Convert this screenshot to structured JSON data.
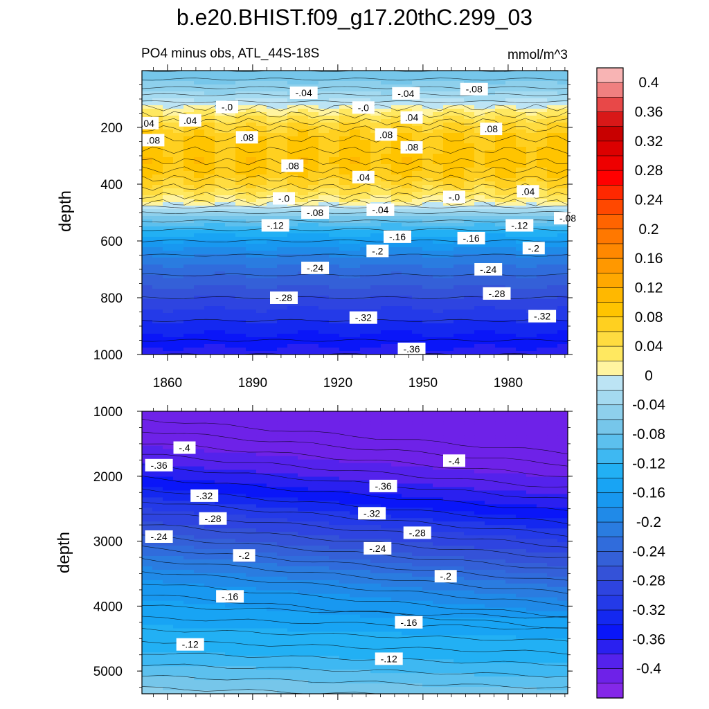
{
  "chart_data": {
    "type": "heatmap",
    "title": "b.e20.BHIST.f09_g17.20thC.299_03",
    "subtitle": "PO4 minus obs, ATL_44S-18S",
    "units": "mmol/m^3",
    "ylabel": "depth",
    "x_ticks": [
      "1860",
      "1890",
      "1920",
      "1950",
      "1980"
    ],
    "x_tick_values": [
      1860,
      1890,
      1920,
      1950,
      1980
    ],
    "xlim": [
      1851,
      2001
    ],
    "colorbar": {
      "labels": [
        "0.4",
        "0.36",
        "0.32",
        "0.28",
        "0.24",
        "0.2",
        "0.16",
        "0.12",
        "0.08",
        "0.04",
        "0",
        "-0.04",
        "-0.08",
        "-0.12",
        "-0.16",
        "-0.2",
        "-0.24",
        "-0.28",
        "-0.32",
        "-0.36",
        "-0.4"
      ],
      "levels_top_to_bottom": [
        0.42,
        0.4,
        0.38,
        0.36,
        0.34,
        0.32,
        0.3,
        0.28,
        0.26,
        0.24,
        0.22,
        0.2,
        0.18,
        0.16,
        0.14,
        0.12,
        0.1,
        0.08,
        0.06,
        0.04,
        0.02,
        0.0,
        -0.02,
        -0.04,
        -0.06,
        -0.08,
        -0.1,
        -0.12,
        -0.14,
        -0.16,
        -0.18,
        -0.2,
        -0.22,
        -0.24,
        -0.26,
        -0.28,
        -0.3,
        -0.32,
        -0.34,
        -0.36,
        -0.38,
        -0.4,
        -0.42
      ],
      "colors": [
        "#f8b4b4",
        "#f08080",
        "#e84848",
        "#d81818",
        "#c80000",
        "#dc0000",
        "#ee0000",
        "#ff0000",
        "#ff2800",
        "#ff4800",
        "#ff6400",
        "#ff7800",
        "#ff8800",
        "#ff9800",
        "#ffa800",
        "#ffb800",
        "#ffc400",
        "#ffd020",
        "#ffdc40",
        "#ffe860",
        "#fff4a0",
        "#bce4f4",
        "#a4daf0",
        "#8ed0ec",
        "#76c6ea",
        "#5cc0ee",
        "#3eb8f2",
        "#22b0f4",
        "#18a4f4",
        "#1898f0",
        "#208ae8",
        "#2a7ce0",
        "#306cdc",
        "#3460d8",
        "#3452d8",
        "#2e44e0",
        "#243ae8",
        "#1428f0",
        "#0a16f8",
        "#2a20f0",
        "#5422ec",
        "#6e22e8",
        "#8428e8"
      ]
    },
    "panels": [
      {
        "name": "upper",
        "ylim": [
          0,
          1000
        ],
        "y_ticks": [
          "200",
          "400",
          "600",
          "800",
          "1000"
        ],
        "y_tick_values": [
          200,
          400,
          600,
          800,
          1000
        ],
        "depth_profile": [
          [
            0,
            -0.07
          ],
          [
            30,
            -0.065
          ],
          [
            60,
            -0.05
          ],
          [
            85,
            -0.035
          ],
          [
            110,
            -0.015
          ],
          [
            130,
            0.005
          ],
          [
            155,
            0.03
          ],
          [
            180,
            0.05
          ],
          [
            205,
            0.065
          ],
          [
            240,
            0.08
          ],
          [
            280,
            0.085
          ],
          [
            320,
            0.09
          ],
          [
            350,
            0.08
          ],
          [
            380,
            0.07
          ],
          [
            410,
            0.05
          ],
          [
            440,
            0.03
          ],
          [
            465,
            0.01
          ],
          [
            480,
            -0.01
          ],
          [
            500,
            -0.04
          ],
          [
            530,
            -0.08
          ],
          [
            560,
            -0.12
          ],
          [
            600,
            -0.16
          ],
          [
            650,
            -0.2
          ],
          [
            720,
            -0.24
          ],
          [
            800,
            -0.28
          ],
          [
            880,
            -0.32
          ],
          [
            950,
            -0.35
          ],
          [
            1000,
            -0.37
          ]
        ],
        "contour_labels": [
          {
            "text": ".04",
            "x": 1853,
            "depth": 185
          },
          {
            "text": ".08",
            "x": 1855,
            "depth": 245
          },
          {
            "text": "-.0",
            "x": 1881,
            "depth": 128
          },
          {
            "text": ".04",
            "x": 1868,
            "depth": 175
          },
          {
            "text": ".08",
            "x": 1888,
            "depth": 235
          },
          {
            "text": "-.04",
            "x": 1908,
            "depth": 78
          },
          {
            "text": ".08",
            "x": 1904,
            "depth": 335
          },
          {
            "text": "-.0",
            "x": 1929,
            "depth": 130
          },
          {
            "text": ".04",
            "x": 1929,
            "depth": 375
          },
          {
            "text": ".08",
            "x": 1937,
            "depth": 225
          },
          {
            "text": "-.04",
            "x": 1944,
            "depth": 80
          },
          {
            "text": ".04",
            "x": 1946,
            "depth": 165
          },
          {
            "text": ".08",
            "x": 1946,
            "depth": 270
          },
          {
            "text": "-.08",
            "x": 1968,
            "depth": 65
          },
          {
            "text": ".08",
            "x": 1974,
            "depth": 205
          },
          {
            "text": "-.0",
            "x": 1961,
            "depth": 445
          },
          {
            "text": ".04",
            "x": 1987,
            "depth": 425
          },
          {
            "text": "-.0",
            "x": 1901,
            "depth": 450
          },
          {
            "text": "-.08",
            "x": 1912,
            "depth": 500
          },
          {
            "text": "-.04",
            "x": 1935,
            "depth": 490
          },
          {
            "text": "-.12",
            "x": 1898,
            "depth": 545
          },
          {
            "text": "-.16",
            "x": 1941,
            "depth": 585
          },
          {
            "text": "-.16",
            "x": 1967,
            "depth": 590
          },
          {
            "text": "-.12",
            "x": 1984,
            "depth": 545
          },
          {
            "text": "-.08",
            "x": 2001,
            "depth": 520
          },
          {
            "text": "-.2",
            "x": 1934,
            "depth": 635
          },
          {
            "text": "-.2",
            "x": 1989,
            "depth": 625
          },
          {
            "text": "-.24",
            "x": 1912,
            "depth": 695
          },
          {
            "text": "-.24",
            "x": 1973,
            "depth": 700
          },
          {
            "text": "-.28",
            "x": 1901,
            "depth": 800
          },
          {
            "text": "-.28",
            "x": 1976,
            "depth": 785
          },
          {
            "text": "-.32",
            "x": 1929,
            "depth": 870
          },
          {
            "text": "-.32",
            "x": 1992,
            "depth": 865
          },
          {
            "text": "-.36",
            "x": 1946,
            "depth": 980
          }
        ]
      },
      {
        "name": "lower",
        "ylim": [
          1000,
          5350
        ],
        "y_ticks": [
          "1000",
          "2000",
          "3000",
          "4000",
          "5000"
        ],
        "y_tick_values": [
          1000,
          2000,
          3000,
          4000,
          5000
        ],
        "contour_labels": [
          {
            "text": "-.4",
            "x": 1866,
            "depth": 1560
          },
          {
            "text": "-.36",
            "x": 1857,
            "depth": 1830
          },
          {
            "text": "-.4",
            "x": 1961,
            "depth": 1760
          },
          {
            "text": "-.36",
            "x": 1936,
            "depth": 2150
          },
          {
            "text": "-.32",
            "x": 1873,
            "depth": 2300
          },
          {
            "text": "-.32",
            "x": 1932,
            "depth": 2570
          },
          {
            "text": "-.28",
            "x": 1876,
            "depth": 2650
          },
          {
            "text": "-.28",
            "x": 1948,
            "depth": 2870
          },
          {
            "text": "-.24",
            "x": 1857,
            "depth": 2930
          },
          {
            "text": "-.24",
            "x": 1934,
            "depth": 3110
          },
          {
            "text": "-.2",
            "x": 1887,
            "depth": 3220
          },
          {
            "text": "-.2",
            "x": 1958,
            "depth": 3540
          },
          {
            "text": "-.16",
            "x": 1882,
            "depth": 3850
          },
          {
            "text": "-.16",
            "x": 1945,
            "depth": 4250
          },
          {
            "text": "-.12",
            "x": 1868,
            "depth": 4590
          },
          {
            "text": "-.12",
            "x": 1938,
            "depth": 4810
          }
        ]
      }
    ]
  }
}
